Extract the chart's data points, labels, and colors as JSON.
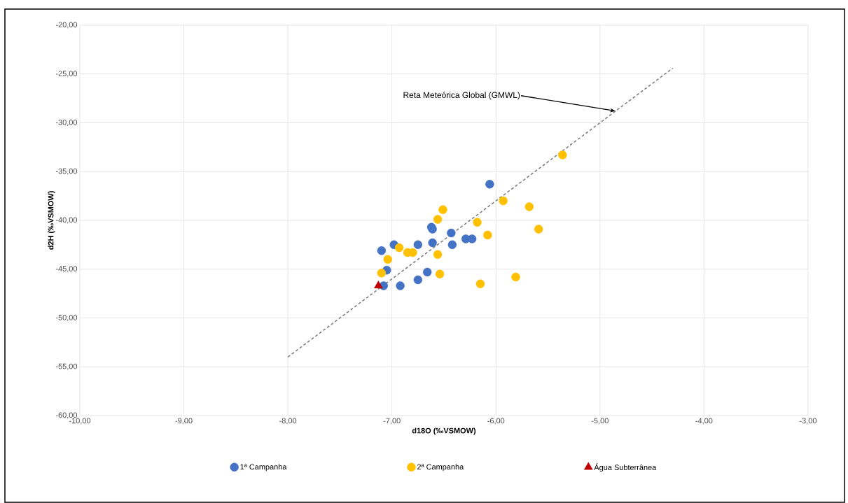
{
  "chart_data": {
    "type": "scatter",
    "xlabel": "d18O (‰VSMOW)",
    "ylabel": "d2H (‰VSMOW)",
    "xlim": [
      -10,
      -3
    ],
    "ylim": [
      -60,
      -20
    ],
    "xticks": [
      {
        "value": -10,
        "label": "-10,00"
      },
      {
        "value": -9,
        "label": "-9,00"
      },
      {
        "value": -8,
        "label": "-8,00"
      },
      {
        "value": -7,
        "label": "-7,00"
      },
      {
        "value": -6,
        "label": "-6,00"
      },
      {
        "value": -5,
        "label": "-5,00"
      },
      {
        "value": -4,
        "label": "-4,00"
      },
      {
        "value": -3,
        "label": "-3,00"
      }
    ],
    "yticks": [
      {
        "value": -60,
        "label": "-60,00"
      },
      {
        "value": -55,
        "label": "-55,00"
      },
      {
        "value": -50,
        "label": "-50,00"
      },
      {
        "value": -45,
        "label": "-45,00"
      },
      {
        "value": -40,
        "label": "-40,00"
      },
      {
        "value": -35,
        "label": "-35,00"
      },
      {
        "value": -30,
        "label": "-30,00"
      },
      {
        "value": -25,
        "label": "-25,00"
      },
      {
        "value": -20,
        "label": "-20,00"
      }
    ],
    "grid": true,
    "legend": "bottom",
    "series": [
      {
        "name": "1ª Campanha",
        "color": "#4472c4",
        "marker": "circle",
        "x": [
          -6.06,
          -6.62,
          -6.61,
          -6.43,
          -6.61,
          -6.42,
          -6.29,
          -6.23,
          -6.75,
          -6.98,
          -7.1,
          -7.05,
          -7.08,
          -6.92,
          -6.75,
          -6.66
        ],
        "values": [
          -36.3,
          -40.7,
          -40.9,
          -41.3,
          -42.3,
          -42.5,
          -41.9,
          -41.9,
          -42.5,
          -42.5,
          -43.1,
          -45.1,
          -46.7,
          -46.7,
          -46.1,
          -45.3
        ]
      },
      {
        "name": "2ª Campanha",
        "color": "#ffc000",
        "marker": "circle",
        "x": [
          -5.36,
          -5.93,
          -5.68,
          -5.59,
          -6.51,
          -6.56,
          -6.18,
          -6.08,
          -6.93,
          -6.85,
          -6.8,
          -6.56,
          -7.04,
          -7.1,
          -6.54,
          -6.15,
          -5.81
        ],
        "values": [
          -33.3,
          -38.0,
          -38.6,
          -40.9,
          -38.9,
          -39.9,
          -40.2,
          -41.5,
          -42.8,
          -43.3,
          -43.3,
          -43.5,
          -44.0,
          -45.4,
          -45.5,
          -46.5,
          -45.8
        ]
      },
      {
        "name": "Água Subterrânea",
        "color": "#c00000",
        "marker": "triangle",
        "x": [
          -7.13
        ],
        "values": [
          -46.7
        ]
      },
      {
        "type": "line",
        "color": "#808080",
        "marker": "none",
        "line_style": "dashed",
        "x": [
          -8,
          -4.3
        ],
        "values": [
          -54,
          -24.4
        ]
      }
    ],
    "annotations": [
      {
        "text": "Reta Meteórica Global (GMWL)",
        "x": -4.85,
        "y": -28.8
      }
    ]
  }
}
